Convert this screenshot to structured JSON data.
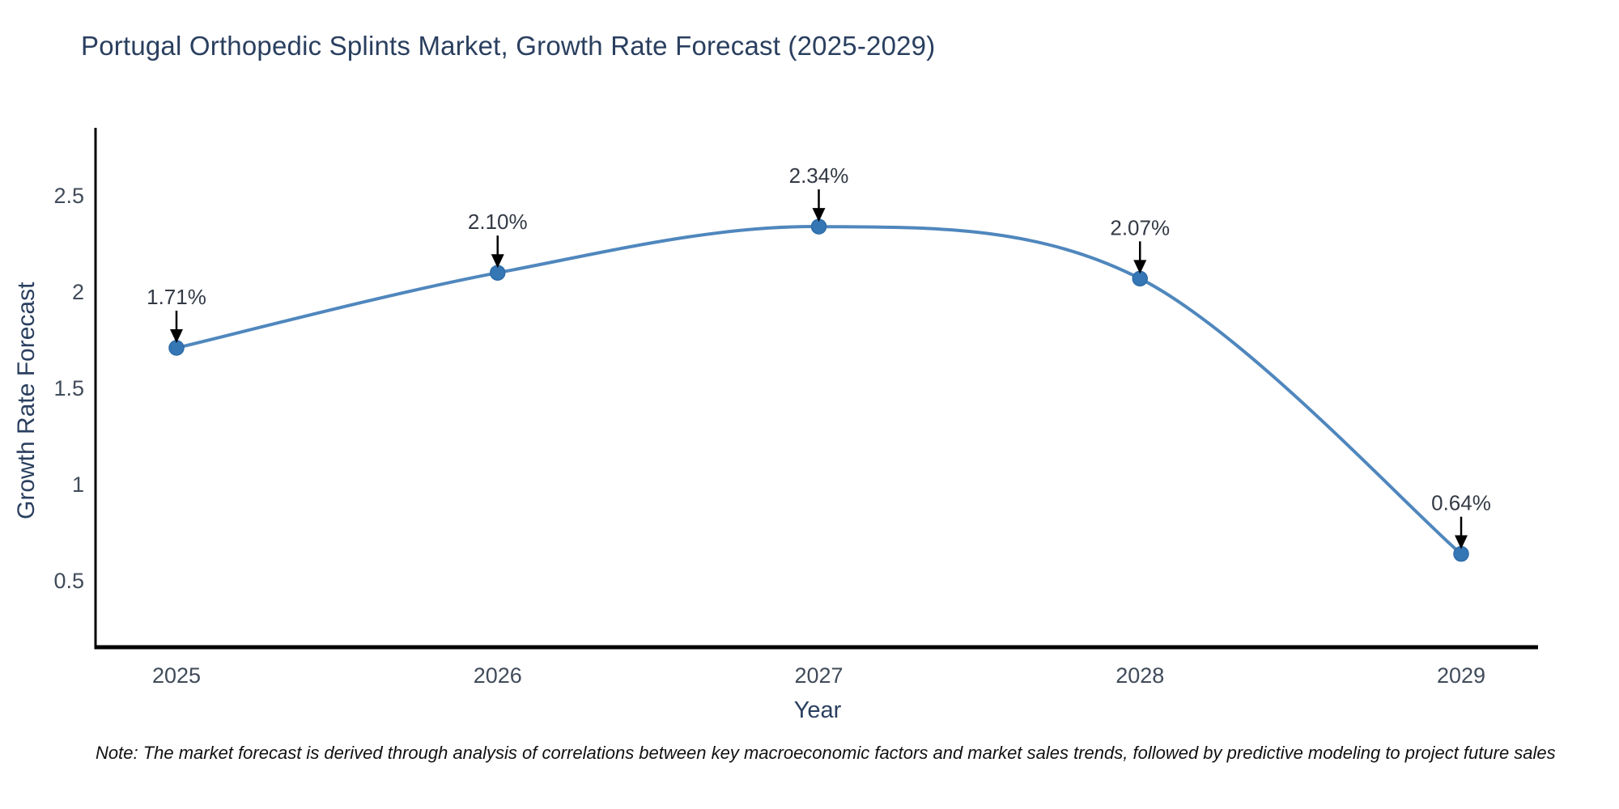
{
  "note": "Note: The market forecast is derived through analysis of correlations between key macroeconomic factors and market sales trends, followed by predictive modeling to project future sales",
  "chart_data": {
    "type": "line",
    "title": "Portugal Orthopedic Splints Market, Growth Rate Forecast (2025-2029)",
    "xlabel": "Year",
    "ylabel": "Growth Rate Forecast",
    "categories": [
      "2025",
      "2026",
      "2027",
      "2028",
      "2029"
    ],
    "values": [
      1.71,
      2.1,
      2.34,
      2.07,
      0.64
    ],
    "point_labels": [
      "1.71%",
      "2.10%",
      "2.34%",
      "2.07%",
      "0.64%"
    ],
    "yticks": [
      2.5,
      2,
      1.5,
      1,
      0.5
    ],
    "ylim": [
      0.15,
      2.85
    ],
    "grid": false,
    "legend": "none",
    "line_shape": "spline",
    "line_color": "#4f87bd",
    "marker_color": "#3577b4",
    "marker_edge_color": "#2e6ca8",
    "axis_line_color": "#000000",
    "annotation_arrow_color": "#000000"
  }
}
